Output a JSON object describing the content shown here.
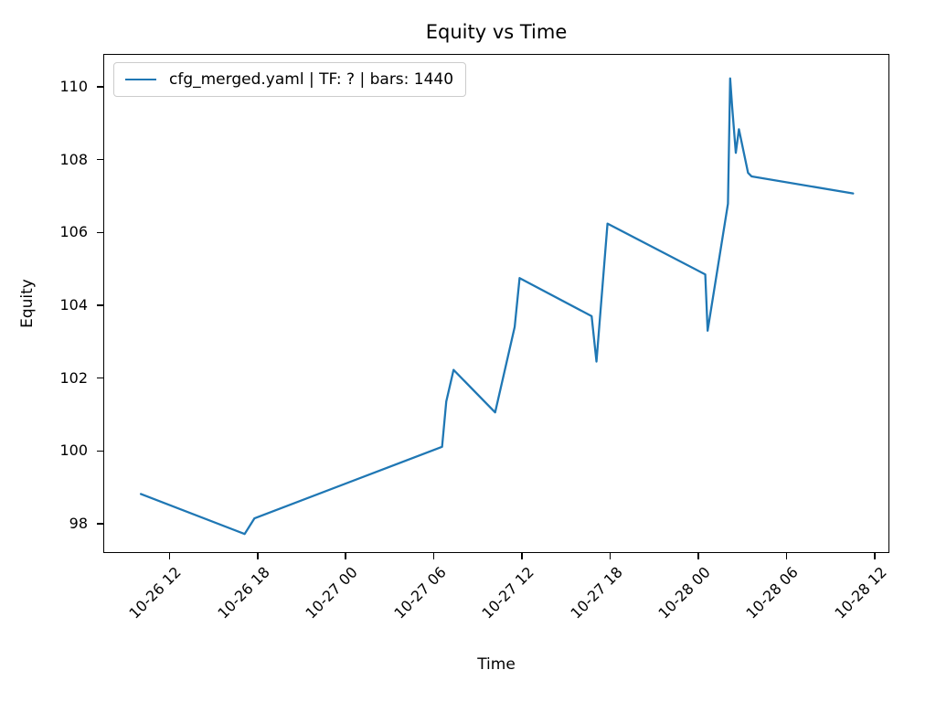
{
  "figure": {
    "background_color": "#ffffff",
    "text_color": "#000000"
  },
  "chart_data": {
    "type": "line",
    "title": "Equity vs Time",
    "xlabel": "Time",
    "ylabel": "Equity",
    "grid": false,
    "legend_position": "upper left",
    "x_tick_labels": [
      "10-26 12",
      "10-26 18",
      "10-27 00",
      "10-27 06",
      "10-27 12",
      "10-27 18",
      "10-28 00",
      "10-28 06",
      "10-28 12"
    ],
    "x_tick_rotation_deg": 45,
    "y_ticks": [
      98,
      100,
      102,
      104,
      106,
      108,
      110
    ],
    "xlim_hours": [
      7.5,
      61.0
    ],
    "ylim": [
      97.2,
      110.9
    ],
    "series": [
      {
        "name": "cfg_merged.yaml | TF: ? | bars: 1440",
        "color": "#1f77b4",
        "points": [
          {
            "time": "10-26 10:00",
            "equity": 98.8
          },
          {
            "time": "10-26 17:05",
            "equity": 97.7
          },
          {
            "time": "10-26 17:45",
            "equity": 98.13
          },
          {
            "time": "10-27 06:33",
            "equity": 100.1
          },
          {
            "time": "10-27 06:50",
            "equity": 101.35
          },
          {
            "time": "10-27 07:20",
            "equity": 102.22
          },
          {
            "time": "10-27 10:10",
            "equity": 101.05
          },
          {
            "time": "10-27 11:30",
            "equity": 103.4
          },
          {
            "time": "10-27 11:50",
            "equity": 104.75
          },
          {
            "time": "10-27 16:45",
            "equity": 103.7
          },
          {
            "time": "10-27 17:05",
            "equity": 102.45
          },
          {
            "time": "10-27 17:50",
            "equity": 106.25
          },
          {
            "time": "10-28 00:30",
            "equity": 104.85
          },
          {
            "time": "10-28 00:40",
            "equity": 103.3
          },
          {
            "time": "10-28 02:03",
            "equity": 106.8
          },
          {
            "time": "10-28 02:12",
            "equity": 110.25
          },
          {
            "time": "10-28 02:20",
            "equity": 109.5
          },
          {
            "time": "10-28 02:35",
            "equity": 108.2
          },
          {
            "time": "10-28 02:48",
            "equity": 108.85
          },
          {
            "time": "10-28 03:25",
            "equity": 107.65
          },
          {
            "time": "10-28 03:40",
            "equity": 107.55
          },
          {
            "time": "10-28 10:35",
            "equity": 107.08
          }
        ]
      }
    ]
  }
}
